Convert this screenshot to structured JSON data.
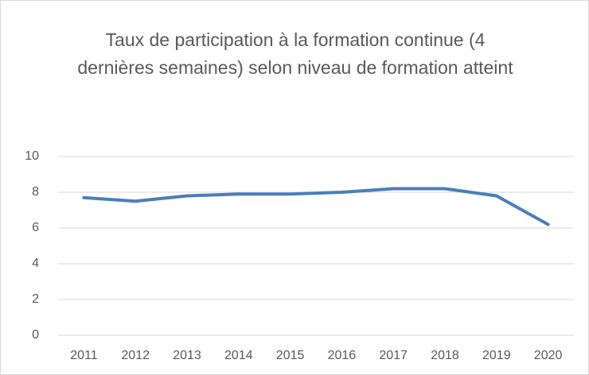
{
  "chart_data": {
    "type": "line",
    "title": "Taux de participation à la formation continue (4 dernières semaines) selon niveau de formation atteint",
    "categories": [
      "2011",
      "2012",
      "2013",
      "2014",
      "2015",
      "2016",
      "2017",
      "2018",
      "2019",
      "2020"
    ],
    "values": [
      7.7,
      7.5,
      7.8,
      7.9,
      7.9,
      8.0,
      8.2,
      8.2,
      7.8,
      6.2
    ],
    "color": "#4a7ebb",
    "ylim": [
      0,
      10
    ],
    "yticks": [
      0,
      2,
      4,
      6,
      8,
      10
    ],
    "grid": true
  }
}
